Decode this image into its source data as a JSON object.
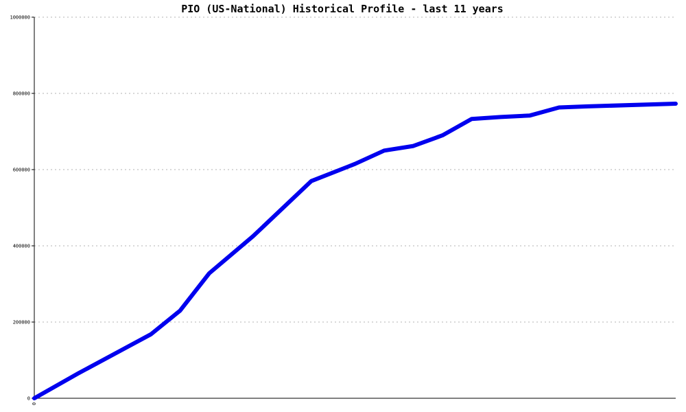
{
  "chart_data": {
    "type": "line",
    "title": "PIO (US-National) Historical Profile - last 11 years",
    "xlabel": "",
    "ylabel": "",
    "x_tick_labels": [
      "0"
    ],
    "y_ticks": [
      0,
      200000,
      400000,
      600000,
      800000,
      1000000
    ],
    "y_tick_labels": [
      "0",
      "200000",
      "400000",
      "600000",
      "800000",
      "1000000"
    ],
    "ylim": [
      0,
      1000000
    ],
    "xlim": [
      0,
      22
    ],
    "grid": true,
    "legend": "none",
    "series": [
      {
        "color": "#0000ee",
        "x": [
          0,
          1.5,
          4,
          5,
          6,
          7.5,
          9.5,
          11,
          12,
          13,
          14,
          15,
          16,
          17,
          18,
          19,
          22
        ],
        "y": [
          0,
          65000,
          168000,
          230000,
          328000,
          425000,
          570000,
          615000,
          650000,
          662000,
          690000,
          733000,
          738000,
          742000,
          763000,
          766000,
          773000
        ]
      }
    ]
  }
}
